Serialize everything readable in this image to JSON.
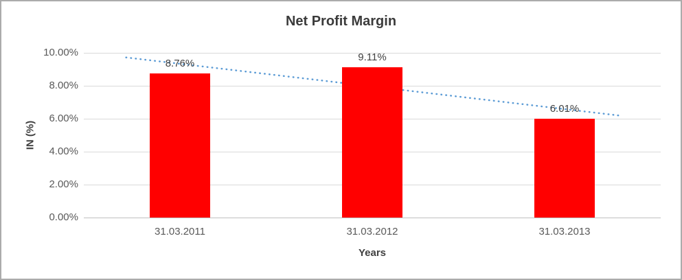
{
  "chart_data": {
    "type": "bar",
    "title": "Net Profit Margin",
    "categories": [
      "31.03.2011",
      "31.03.2012",
      "31.03.2013"
    ],
    "values": [
      8.76,
      9.11,
      6.01
    ],
    "data_labels": [
      "8.76%",
      "9.11%",
      "6.01%"
    ],
    "xlabel": "Years",
    "ylabel": "IN (%)",
    "ylim": [
      0,
      10
    ],
    "ytick_step": 2,
    "ytick_labels": [
      "0.00%",
      "2.00%",
      "4.00%",
      "6.00%",
      "8.00%",
      "10.00%"
    ],
    "grid": true,
    "legend": "none",
    "trendline": {
      "type": "linear",
      "style": "dotted"
    }
  },
  "colors": {
    "bar": "#FF0000",
    "trendline": "#5B9BD5",
    "title_text": "#3B3B3B",
    "axis_text": "#595959",
    "axis_title_text": "#404040",
    "data_label_text": "#404040",
    "gridline": "#D9D9D9",
    "axis_line": "#BFBFBF",
    "frame_border": "#ABABAB",
    "background": "#FFFFFF"
  }
}
